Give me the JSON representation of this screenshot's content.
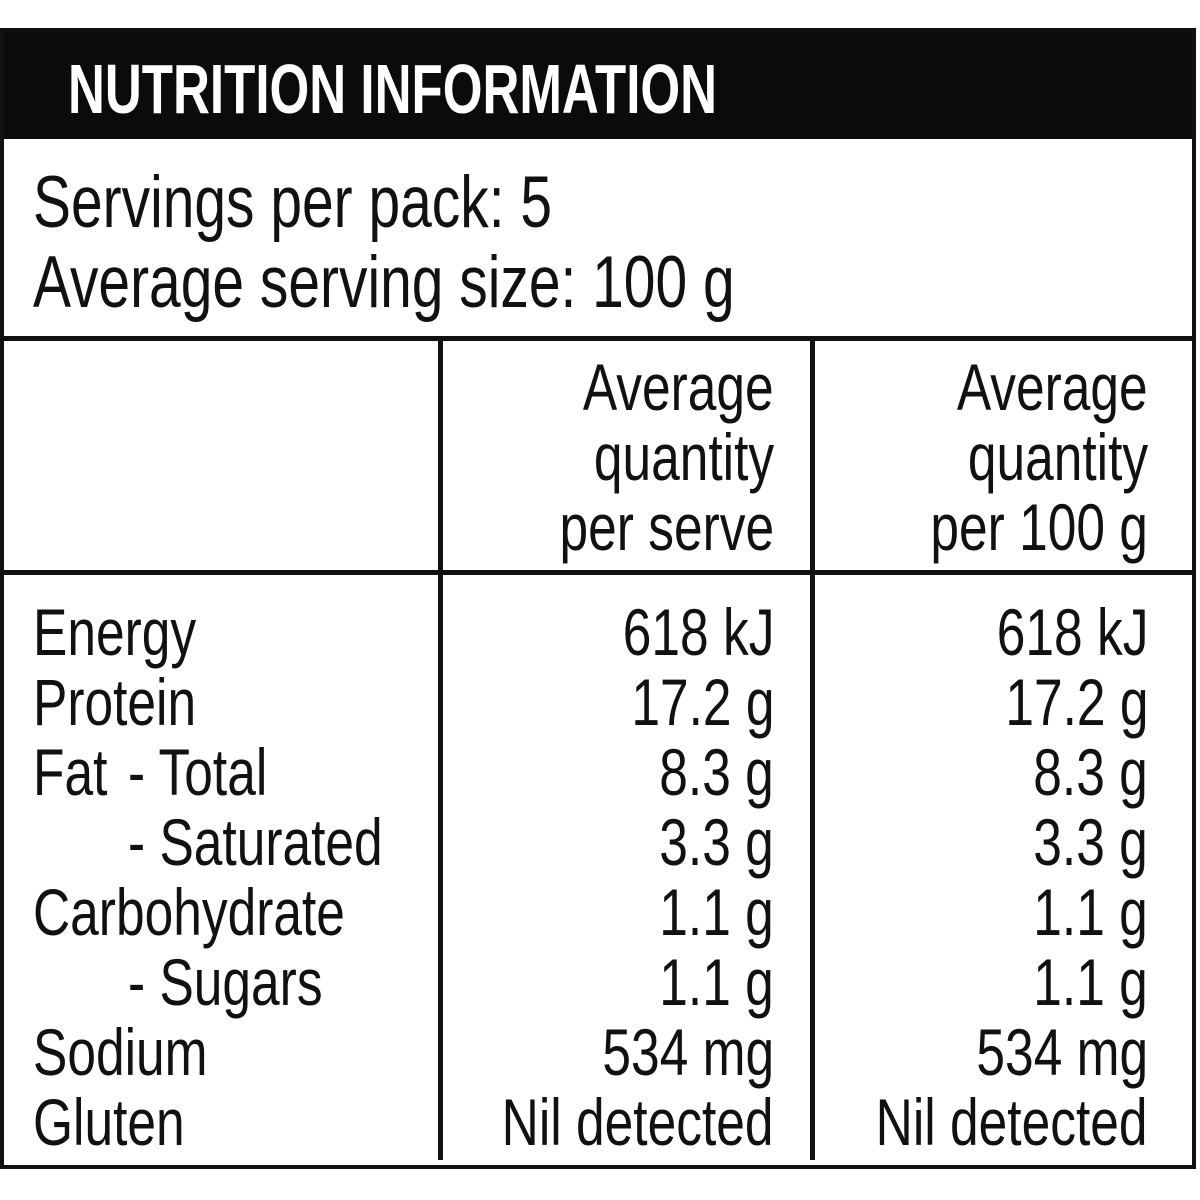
{
  "title": "NUTRITION INFORMATION",
  "servings": {
    "line1": "Servings per pack: 5",
    "line2": "Average serving size: 100 g"
  },
  "table": {
    "serve_header": {
      "l1": "Average",
      "l2": "quantity",
      "l3": "per serve"
    },
    "per100g_header": {
      "l1": "Average",
      "l2": "quantity",
      "l3": "per 100 g"
    },
    "rows": [
      {
        "name": "Energy",
        "sub": "",
        "per_serve": "618 kJ",
        "per_100g": "618 kJ"
      },
      {
        "name": "Protein",
        "sub": "",
        "per_serve": "17.2 g",
        "per_100g": "17.2 g"
      },
      {
        "name": "Fat",
        "sub": "- Total",
        "per_serve": "8.3 g",
        "per_100g": "8.3 g"
      },
      {
        "name": "",
        "sub": "- Saturated",
        "per_serve": "3.3 g",
        "per_100g": "3.3 g"
      },
      {
        "name": "Carbohydrate",
        "sub": "",
        "per_serve": "1.1 g",
        "per_100g": "1.1 g"
      },
      {
        "name": "",
        "sub": "- Sugars",
        "per_serve": "1.1 g",
        "per_100g": "1.1 g"
      },
      {
        "name": "Sodium",
        "sub": "",
        "per_serve": "534 mg",
        "per_100g": "534 mg"
      },
      {
        "name": "Gluten",
        "sub": "",
        "per_serve": "Nil detected",
        "per_100g": "Nil detected"
      }
    ]
  },
  "colors": {
    "title_bar_background": "#0b0b0b",
    "title_text": "#ffffff",
    "border_lines": "#111111",
    "body_text": "#111111",
    "background": "#ffffff"
  }
}
